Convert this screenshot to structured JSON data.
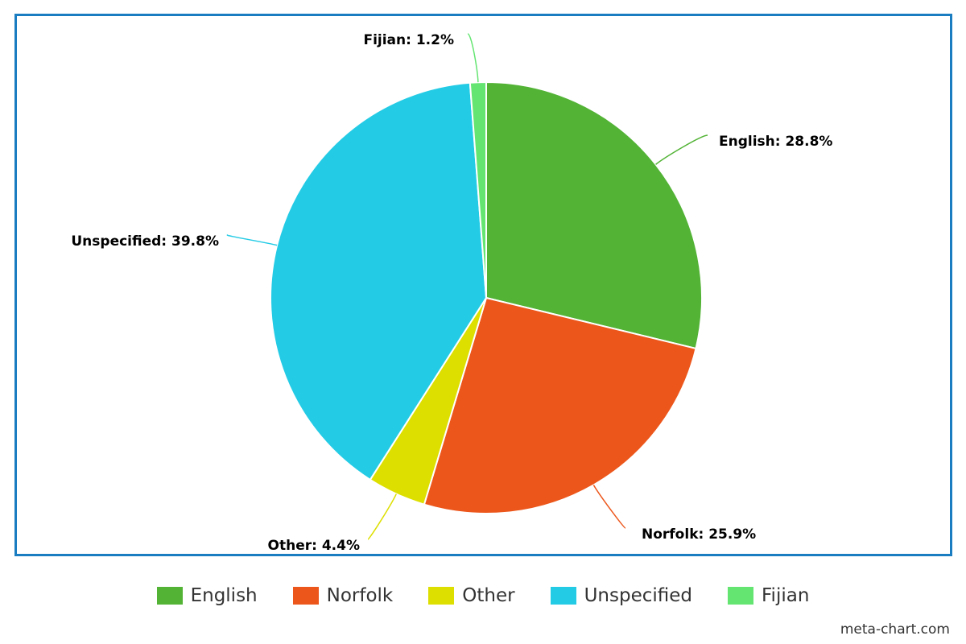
{
  "chart_data": {
    "type": "pie",
    "title": "",
    "slices": [
      {
        "name": "English",
        "value": 28.8,
        "label": "English: 28.8%",
        "color": "#52b335"
      },
      {
        "name": "Norfolk",
        "value": 25.9,
        "label": "Norfolk: 25.9%",
        "color": "#ec561b"
      },
      {
        "name": "Other",
        "value": 4.4,
        "label": "Other: 4.4%",
        "color": "#dddf00"
      },
      {
        "name": "Unspecified",
        "value": 39.8,
        "label": "Unspecified: 39.8%",
        "color": "#24cbe5"
      },
      {
        "name": "Fijian",
        "value": 1.2,
        "label": "Fijian: 1.2%",
        "color": "#64e572"
      }
    ],
    "legend": {
      "position": "bottom",
      "items": [
        "English",
        "Norfolk",
        "Other",
        "Unspecified",
        "Fijian"
      ]
    },
    "credit": "meta-chart.com",
    "border_color": "#1a7cc1"
  }
}
